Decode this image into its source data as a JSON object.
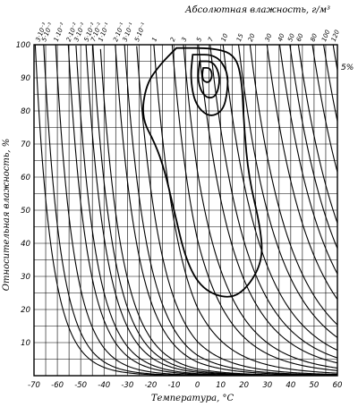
{
  "chart_data": {
    "type": "line",
    "title": "Абсолютная влажность, г/м³",
    "xlabel": "Температура, °С",
    "ylabel": "Относительная влажность, %",
    "xlim": [
      -70,
      60
    ],
    "ylim": [
      0,
      100
    ],
    "x_ticks": [
      -70,
      -60,
      -50,
      -40,
      -30,
      -20,
      -10,
      0,
      10,
      20,
      30,
      40,
      50,
      60
    ],
    "y_ticks": [
      10,
      20,
      30,
      40,
      50,
      60,
      70,
      80,
      90,
      100
    ],
    "y_ticks_labels": [
      "10",
      "20",
      "30",
      "40",
      "50",
      "60",
      "70",
      "80",
      "90",
      "100"
    ],
    "x_ticks_labels": [
      "-70",
      "-60",
      "-50",
      "-40",
      "-30",
      "-20",
      "-10",
      "0",
      "10",
      "20",
      "30",
      "40",
      "50",
      "60"
    ],
    "grid": true,
    "absolute_humidity_curves": {
      "labels": [
        "3·10⁻³",
        "5·10⁻³",
        "1·10⁻²",
        "2·10⁻²",
        "3·10⁻²",
        "5·10⁻²",
        "7·10⁻²",
        "1·10⁻¹",
        "2·10⁻¹",
        "3·10⁻¹",
        "5·10⁻¹",
        "1",
        "2",
        "3",
        "5",
        "7",
        "10",
        "15",
        "20",
        "30",
        "40",
        "50",
        "60",
        "80",
        "100",
        "120"
      ],
      "values_g_m3": [
        0.003,
        0.005,
        0.01,
        0.02,
        0.03,
        0.05,
        0.07,
        0.1,
        0.2,
        0.3,
        0.5,
        1,
        2,
        3,
        5,
        7,
        10,
        15,
        20,
        30,
        40,
        50,
        60,
        80,
        100,
        120
      ]
    },
    "contours": [
      {
        "label": "5%",
        "points": [
          [
            -9,
            99
          ],
          [
            7,
            99
          ],
          [
            16,
            97
          ],
          [
            19,
            90
          ],
          [
            20,
            75
          ],
          [
            22,
            60
          ],
          [
            27,
            45
          ],
          [
            28,
            35
          ],
          [
            22,
            27
          ],
          [
            14,
            23
          ],
          [
            2,
            26
          ],
          [
            -5,
            35
          ],
          [
            -10,
            50
          ],
          [
            -14,
            62
          ],
          [
            -18,
            70
          ],
          [
            -24,
            78
          ],
          [
            -22,
            88
          ],
          [
            -16,
            94
          ],
          [
            -9,
            99
          ]
        ]
      },
      {
        "points": [
          [
            -2,
            97
          ],
          [
            8,
            97
          ],
          [
            13,
            92
          ],
          [
            13,
            86
          ],
          [
            11,
            80
          ],
          [
            5,
            78
          ],
          [
            -1,
            82
          ],
          [
            -3,
            90
          ],
          [
            -2,
            97
          ]
        ]
      },
      {
        "points": [
          [
            1,
            95
          ],
          [
            7,
            95
          ],
          [
            10,
            90
          ],
          [
            8,
            84
          ],
          [
            3,
            84
          ],
          [
            0,
            89
          ],
          [
            1,
            95
          ]
        ]
      },
      {
        "points": [
          [
            2.5,
            93
          ],
          [
            5.5,
            93
          ],
          [
            6.5,
            90.5
          ],
          [
            5,
            88.5
          ],
          [
            2.5,
            89
          ],
          [
            2,
            91
          ],
          [
            2.5,
            93
          ]
        ]
      }
    ],
    "annotations": [
      {
        "text": "5%"
      }
    ]
  }
}
